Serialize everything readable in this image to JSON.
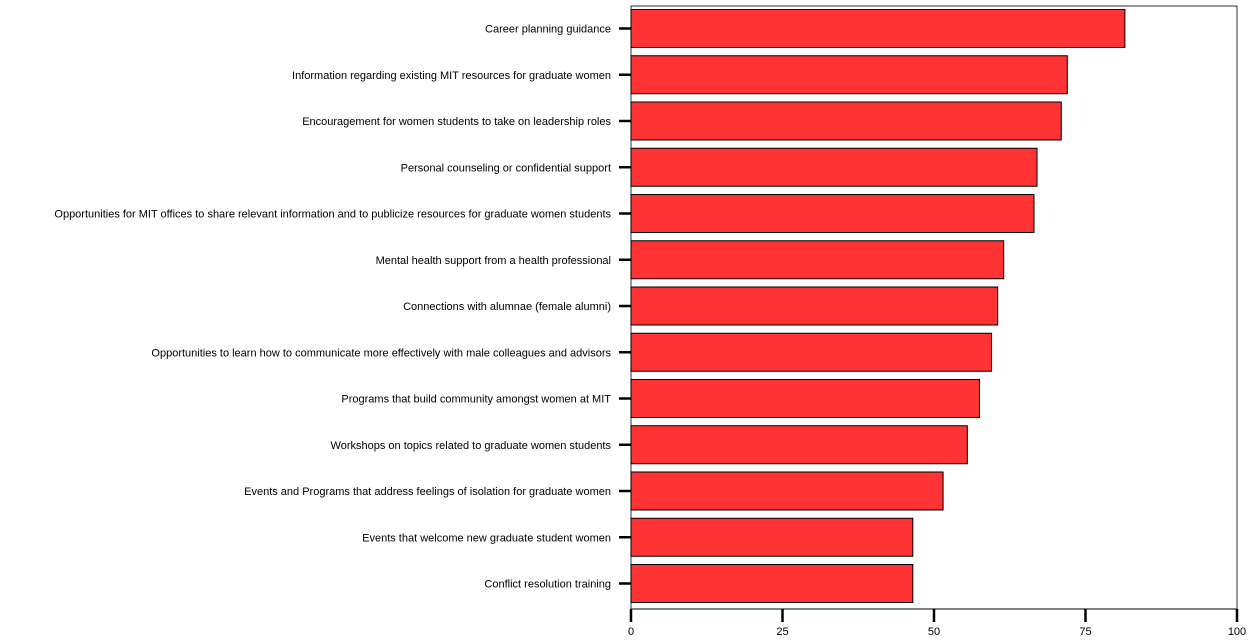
{
  "chart_data": {
    "type": "bar",
    "orientation": "horizontal",
    "categories": [
      "Career planning guidance",
      "Information regarding existing MIT resources for graduate women",
      "Encouragement for women students to take on leadership roles",
      "Personal counseling or confidential support",
      "Opportunities for MIT offices to share relevant information and to publicize resources for graduate women students",
      "Mental health support from a health professional",
      "Connections with alumnae (female alumni)",
      "Opportunities to learn how to communicate more effectively with male colleagues and advisors",
      "Programs that build community amongst women at MIT",
      "Workshops on topics related to graduate women students",
      "Events and Programs that address feelings of isolation for graduate women",
      "Events that welcome new graduate student women",
      "Conflict resolution training"
    ],
    "values": [
      81.5,
      72,
      71,
      67,
      66.5,
      61.5,
      60.5,
      59.5,
      57.5,
      55.5,
      51.5,
      46.5,
      46.5
    ],
    "xlim": [
      0,
      100
    ],
    "xticks": [
      0,
      25,
      50,
      75,
      100
    ],
    "title": "",
    "xlabel": "",
    "ylabel": "",
    "grid": false,
    "bar_color": "#ff3333",
    "bar_edge_color": "#000000"
  }
}
